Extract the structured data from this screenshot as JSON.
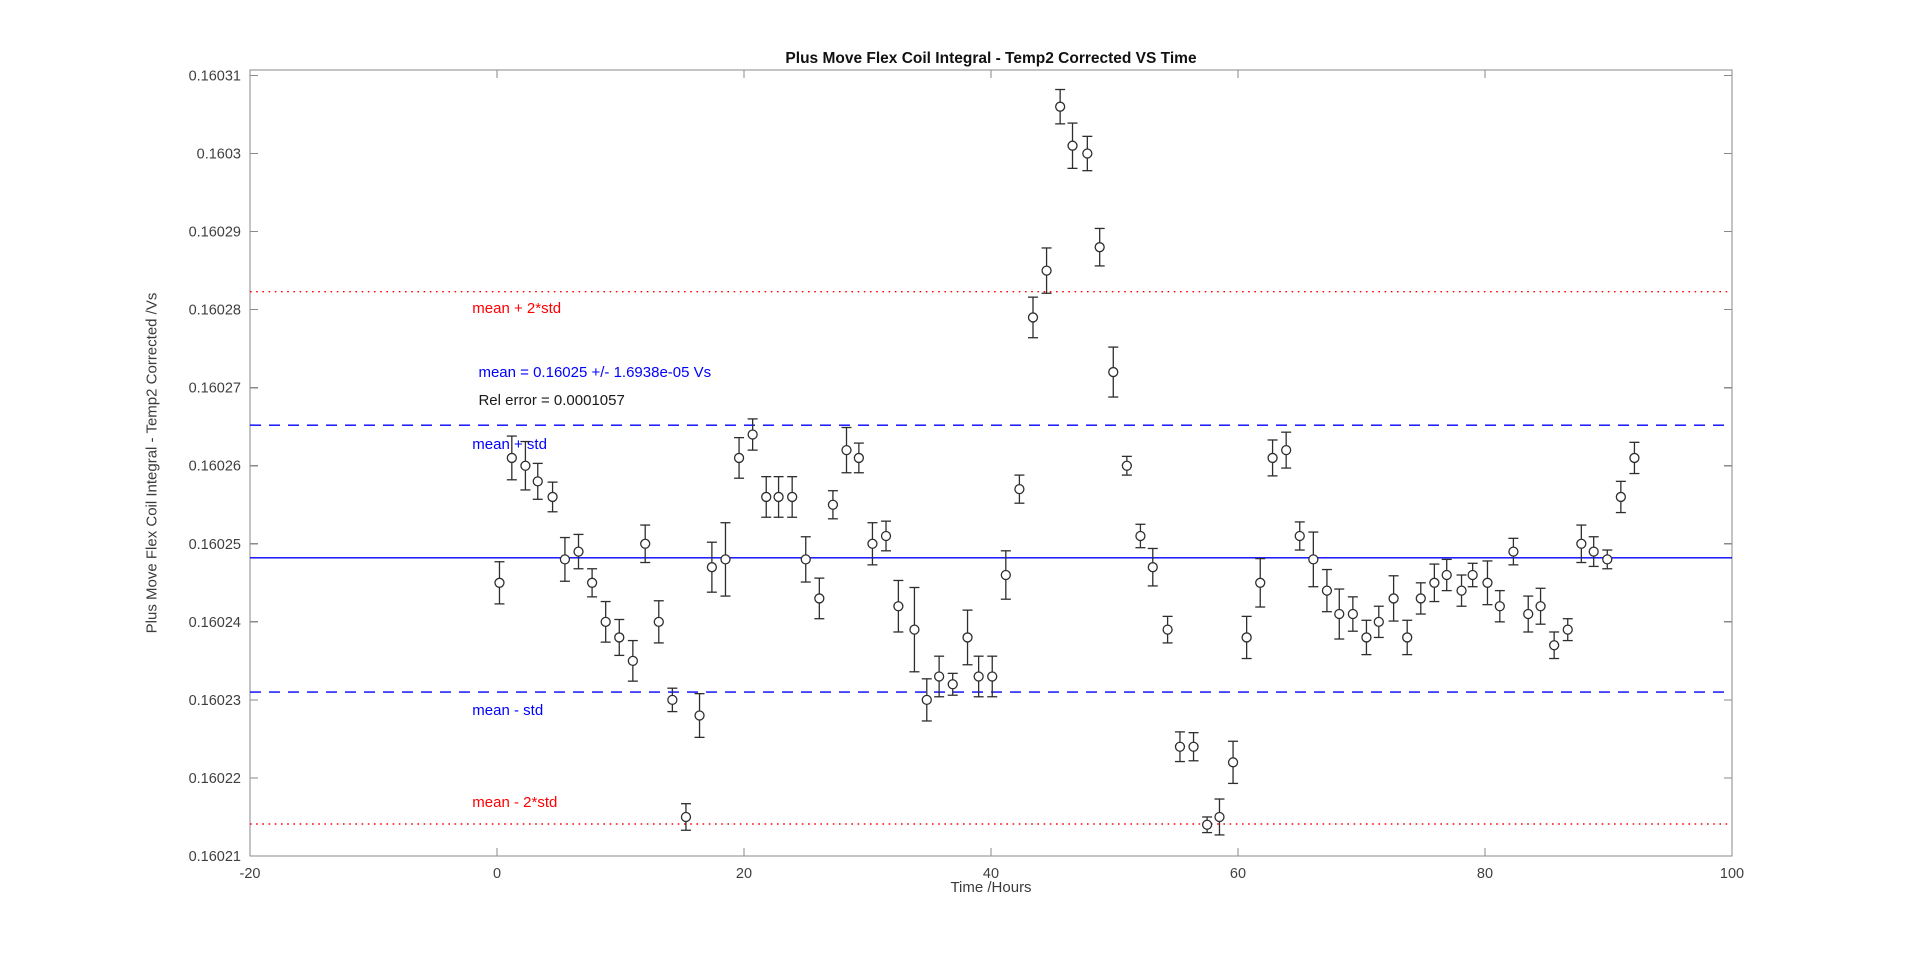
{
  "colors": {
    "background": "#ffffff",
    "axis": "#8a8a8a",
    "tick_label": "#3f3f3f",
    "marker": "#2e2e2e",
    "mean_line": "#0000ff",
    "std_line": "#0000ff",
    "two_std_line": "#ff0000",
    "annotation_black": "#1a1a1a"
  },
  "chart_data": {
    "type": "scatter",
    "title": "Plus Move Flex Coil Integral - Temp2 Corrected VS Time",
    "xlabel": "Time /Hours",
    "ylabel": "Plus Move Flex Coil Integral - Temp2 Corrected /Vs",
    "grid": false,
    "legend_position": "none",
    "xlim": [
      -20,
      100
    ],
    "ylim": [
      0.16021,
      0.1603107
    ],
    "x_ticks": [
      -20,
      0,
      20,
      40,
      60,
      80,
      100
    ],
    "x_tick_labels": [
      "-20",
      "0",
      "20",
      "40",
      "60",
      "80",
      "100"
    ],
    "y_ticks": [
      0.16021,
      0.16022,
      0.16023,
      0.16024,
      0.16025,
      0.16026,
      0.16027,
      0.16028,
      0.16029,
      0.1603,
      0.16031
    ],
    "y_tick_labels": [
      "0.16021",
      "0.16022",
      "0.16023",
      "0.16024",
      "0.16025",
      "0.16026",
      "0.16027",
      "0.16028",
      "0.16029",
      "0.1603",
      "0.16031"
    ],
    "stats": {
      "mean": 0.16025,
      "std": 1.6938e-05,
      "rel_error": 0.0001057
    },
    "lines": [
      {
        "name": "mean",
        "value": 0.1602482,
        "style": "solid",
        "color": "#0000ff"
      },
      {
        "name": "mean-plus-std",
        "value": 0.1602652,
        "style": "dashed",
        "color": "#0000ff"
      },
      {
        "name": "mean-minus-std",
        "value": 0.160231,
        "style": "dashed",
        "color": "#0000ff"
      },
      {
        "name": "mean-plus-2std",
        "value": 0.1602823,
        "style": "dotted",
        "color": "#ff0000"
      },
      {
        "name": "mean-minus-2std",
        "value": 0.1602141,
        "style": "dotted",
        "color": "#ff0000"
      }
    ],
    "annotations": [
      {
        "name": "label-mean-plus-2std",
        "text": "mean + 2*std",
        "color": "#ff0000",
        "t": -2.0,
        "value": 0.1602802
      },
      {
        "name": "label-mean-value",
        "text": "mean = 0.16025 +/- 1.6938e-05 Vs",
        "color": "#0000ff",
        "t": -1.5,
        "value": 0.160272
      },
      {
        "name": "label-rel-error",
        "text": "Rel error = 0.0001057",
        "color": "#1a1a1a",
        "t": -1.5,
        "value": 0.1602684
      },
      {
        "name": "label-mean-plus-std",
        "text": "mean + std",
        "color": "#0000ff",
        "t": -2.0,
        "value": 0.1602628
      },
      {
        "name": "label-mean-minus-std",
        "text": "mean - std",
        "color": "#0000ff",
        "t": -2.0,
        "value": 0.1602287
      },
      {
        "name": "label-mean-minus-2std",
        "text": "mean - 2*std",
        "color": "#ff0000",
        "t": -2.0,
        "value": 0.1602169
      }
    ],
    "series": [
      {
        "name": "coil-integral-vs-time",
        "marker": "open-circle",
        "errorbars": true,
        "color": "#2e2e2e",
        "points": [
          [
            0.2,
            0.160245,
            2.7e-06
          ],
          [
            1.2,
            0.160261,
            2.8e-06
          ],
          [
            2.3,
            0.16026,
            3.1e-06
          ],
          [
            3.3,
            0.160258,
            2.3e-06
          ],
          [
            4.5,
            0.160256,
            1.9e-06
          ],
          [
            5.5,
            0.160248,
            2.8e-06
          ],
          [
            6.6,
            0.160249,
            2.2e-06
          ],
          [
            7.7,
            0.160245,
            1.8e-06
          ],
          [
            8.8,
            0.16024,
            2.6e-06
          ],
          [
            9.9,
            0.160238,
            2.3e-06
          ],
          [
            11.0,
            0.160235,
            2.6e-06
          ],
          [
            12.0,
            0.16025,
            2.4e-06
          ],
          [
            13.1,
            0.16024,
            2.7e-06
          ],
          [
            14.2,
            0.16023,
            1.5e-06
          ],
          [
            15.3,
            0.160215,
            1.7e-06
          ],
          [
            16.4,
            0.160228,
            2.8e-06
          ],
          [
            17.4,
            0.160247,
            3.2e-06
          ],
          [
            18.5,
            0.160248,
            4.7e-06
          ],
          [
            19.6,
            0.160261,
            2.6e-06
          ],
          [
            20.7,
            0.160264,
            2e-06
          ],
          [
            21.8,
            0.160256,
            2.6e-06
          ],
          [
            22.8,
            0.160256,
            2.6e-06
          ],
          [
            23.9,
            0.160256,
            2.6e-06
          ],
          [
            25.0,
            0.160248,
            2.9e-06
          ],
          [
            26.1,
            0.160243,
            2.6e-06
          ],
          [
            27.2,
            0.160255,
            1.8e-06
          ],
          [
            28.3,
            0.160262,
            2.9e-06
          ],
          [
            29.3,
            0.160261,
            1.9e-06
          ],
          [
            30.4,
            0.16025,
            2.7e-06
          ],
          [
            31.5,
            0.160251,
            1.9e-06
          ],
          [
            32.5,
            0.160242,
            3.3e-06
          ],
          [
            33.8,
            0.160239,
            5.4e-06
          ],
          [
            34.8,
            0.16023,
            2.7e-06
          ],
          [
            35.8,
            0.160233,
            2.6e-06
          ],
          [
            36.9,
            0.160232,
            1.4e-06
          ],
          [
            38.1,
            0.160238,
            3.5e-06
          ],
          [
            39.0,
            0.160233,
            2.6e-06
          ],
          [
            40.1,
            0.160233,
            2.6e-06
          ],
          [
            41.2,
            0.160246,
            3.1e-06
          ],
          [
            42.3,
            0.160257,
            1.8e-06
          ],
          [
            43.4,
            0.160279,
            2.6e-06
          ],
          [
            44.5,
            0.160285,
            2.9e-06
          ],
          [
            45.6,
            0.160306,
            2.2e-06
          ],
          [
            46.6,
            0.160301,
            2.9e-06
          ],
          [
            47.8,
            0.1603,
            2.2e-06
          ],
          [
            48.8,
            0.160288,
            2.4e-06
          ],
          [
            49.9,
            0.160272,
            3.2e-06
          ],
          [
            51.0,
            0.16026,
            1.2e-06
          ],
          [
            52.1,
            0.160251,
            1.5e-06
          ],
          [
            53.1,
            0.160247,
            2.4e-06
          ],
          [
            54.3,
            0.160239,
            1.7e-06
          ],
          [
            55.3,
            0.160224,
            1.9e-06
          ],
          [
            56.4,
            0.160224,
            1.8e-06
          ],
          [
            57.5,
            0.160214,
            1e-06
          ],
          [
            58.5,
            0.160215,
            2.3e-06
          ],
          [
            59.6,
            0.160222,
            2.7e-06
          ],
          [
            60.7,
            0.160238,
            2.7e-06
          ],
          [
            61.8,
            0.160245,
            3.1e-06
          ],
          [
            62.8,
            0.160261,
            2.3e-06
          ],
          [
            63.9,
            0.160262,
            2.3e-06
          ],
          [
            65.0,
            0.160251,
            1.8e-06
          ],
          [
            66.1,
            0.160248,
            3.5e-06
          ],
          [
            67.2,
            0.160244,
            2.7e-06
          ],
          [
            68.2,
            0.160241,
            3.2e-06
          ],
          [
            69.3,
            0.160241,
            2.2e-06
          ],
          [
            70.4,
            0.160238,
            2.2e-06
          ],
          [
            71.4,
            0.16024,
            2e-06
          ],
          [
            72.6,
            0.160243,
            2.9e-06
          ],
          [
            73.7,
            0.160238,
            2.2e-06
          ],
          [
            74.8,
            0.160243,
            2e-06
          ],
          [
            75.9,
            0.160245,
            2.4e-06
          ],
          [
            76.9,
            0.160246,
            2e-06
          ],
          [
            78.1,
            0.160244,
            2e-06
          ],
          [
            79.0,
            0.160246,
            1.5e-06
          ],
          [
            80.2,
            0.160245,
            2.8e-06
          ],
          [
            81.2,
            0.160242,
            2e-06
          ],
          [
            82.3,
            0.160249,
            1.7e-06
          ],
          [
            83.5,
            0.160241,
            2.3e-06
          ],
          [
            84.5,
            0.160242,
            2.3e-06
          ],
          [
            85.6,
            0.160237,
            1.7e-06
          ],
          [
            86.7,
            0.160239,
            1.4e-06
          ],
          [
            87.8,
            0.16025,
            2.4e-06
          ],
          [
            88.8,
            0.160249,
            1.9e-06
          ],
          [
            89.9,
            0.160248,
            1.2e-06
          ],
          [
            91.0,
            0.160256,
            2e-06
          ],
          [
            92.1,
            0.160261,
            2e-06
          ]
        ]
      }
    ]
  }
}
